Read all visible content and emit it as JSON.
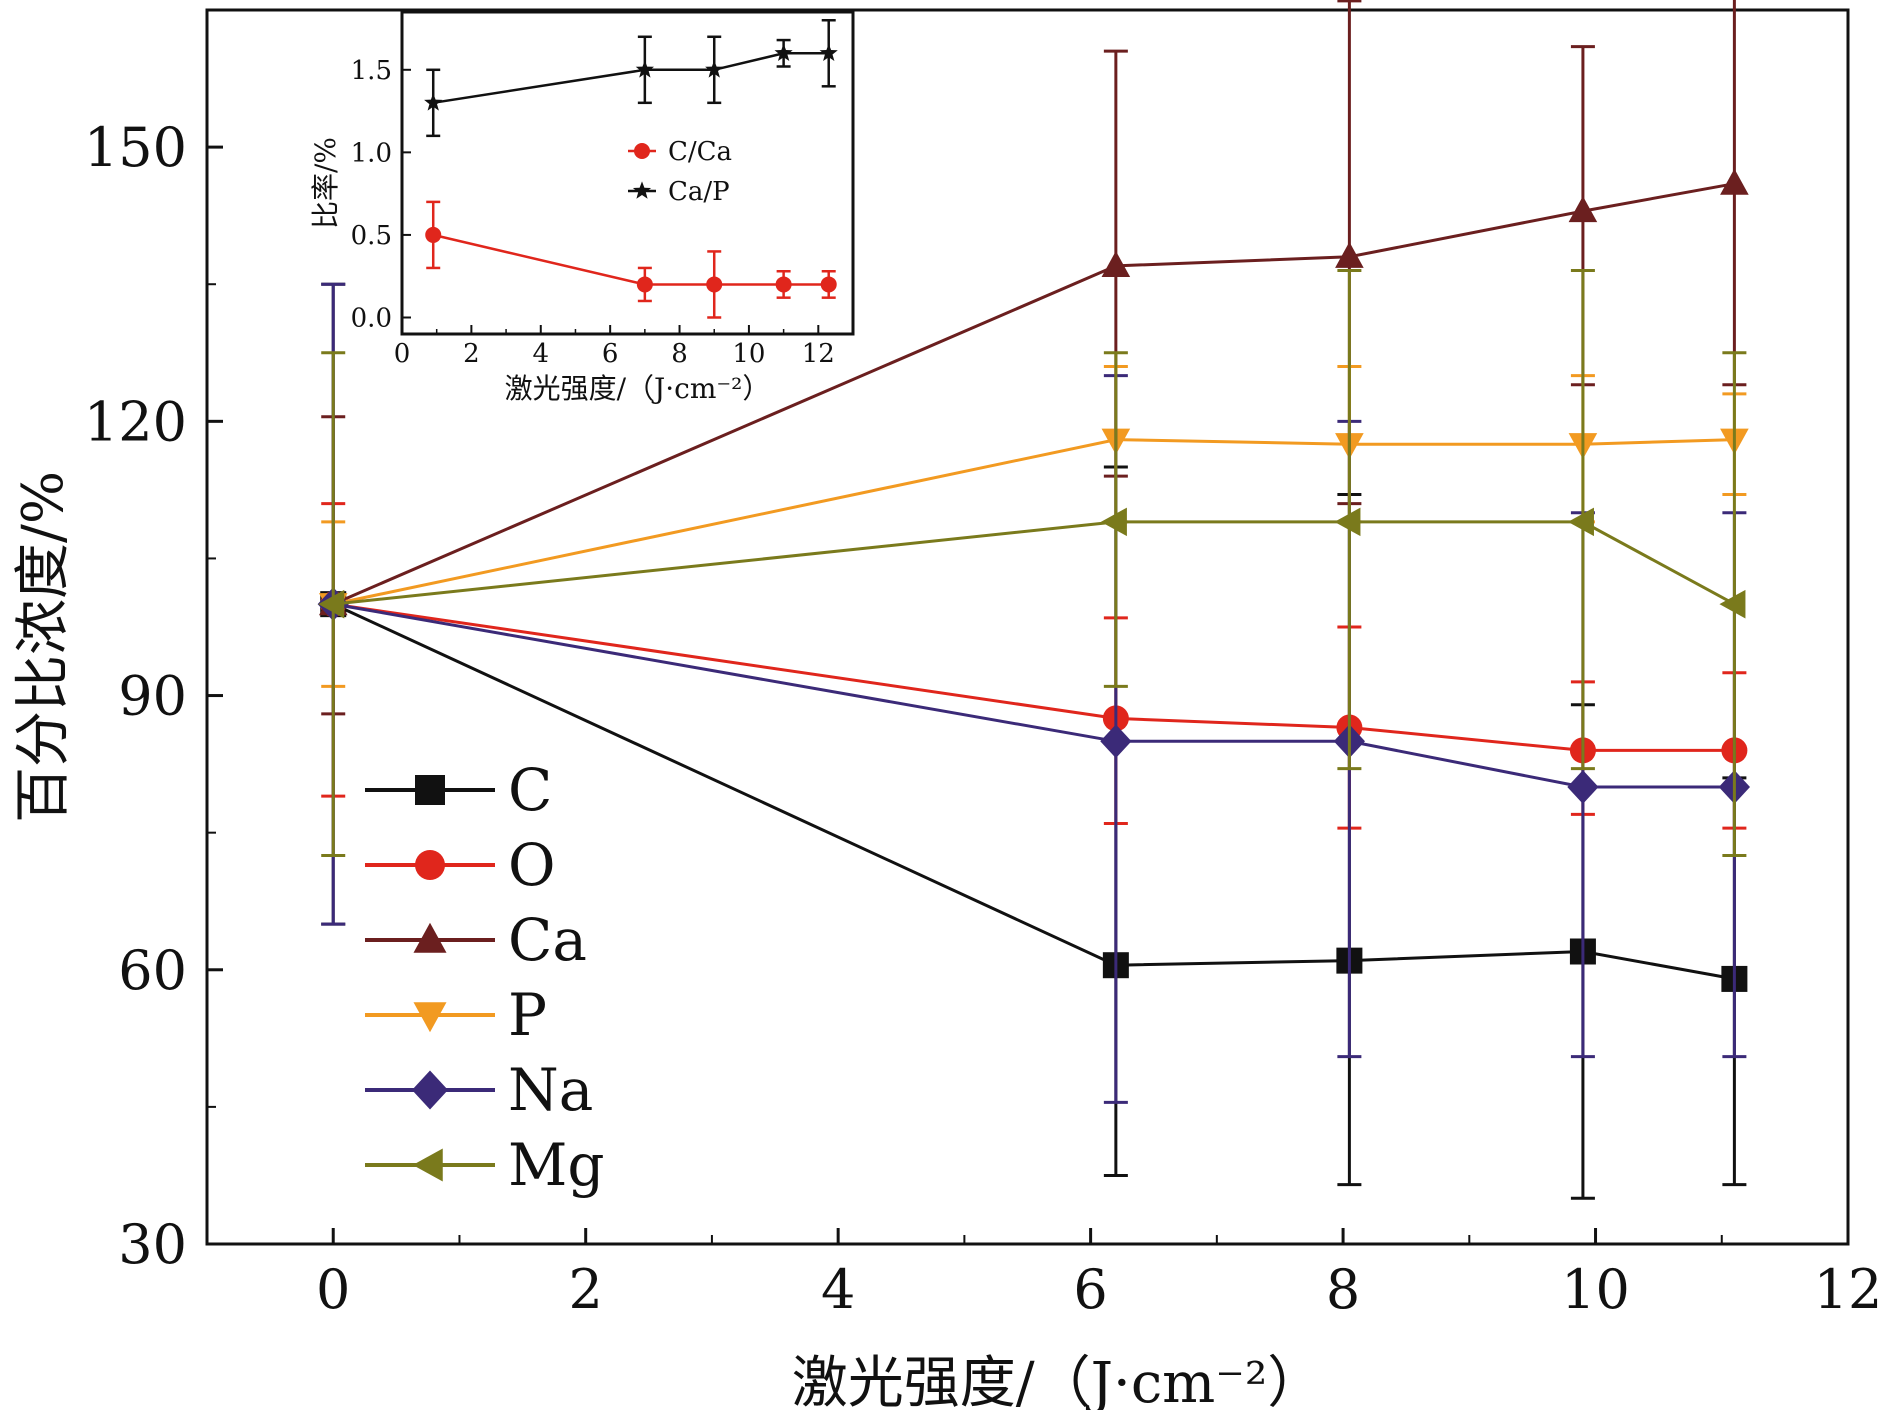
{
  "chart_data": [
    {
      "type": "line",
      "xlabel": "激光强度/（J·cm⁻²）",
      "ylabel": "百分比浓度/%",
      "xlim": [
        -1,
        12
      ],
      "ylim": [
        30,
        165
      ],
      "xticks": [
        0,
        2,
        4,
        6,
        8,
        10,
        12
      ],
      "yticks": [
        30,
        60,
        90,
        120,
        150
      ],
      "x": [
        0,
        6.2,
        8.05,
        9.9,
        11.1
      ],
      "legend_position": "bottom-left",
      "grid": false,
      "series": [
        {
          "name": "C",
          "color": "#111111",
          "marker": "square",
          "values": [
            100,
            60.5,
            61.0,
            62.0,
            59.0
          ],
          "err_low": [
            65,
            37.5,
            36.5,
            35.0,
            36.5
          ],
          "err_high": [
            135,
            115,
            112,
            89,
            81
          ]
        },
        {
          "name": "O",
          "color": "#e0261c",
          "marker": "circle",
          "values": [
            100,
            87.5,
            86.5,
            84.0,
            84.0
          ],
          "err_low": [
            79,
            76,
            75.5,
            77,
            75.5
          ],
          "err_high": [
            111,
            98.5,
            97.5,
            91.5,
            92.5
          ]
        },
        {
          "name": "Ca",
          "color": "#6b1f1f",
          "marker": "triangle-up",
          "values": [
            100,
            137,
            138,
            143,
            146
          ],
          "err_low": [
            88,
            114,
            111,
            124,
            124
          ],
          "err_high": [
            120.5,
            160.5,
            166,
            161,
            168
          ]
        },
        {
          "name": "P",
          "color": "#f29a21",
          "marker": "triangle-down",
          "values": [
            100,
            118,
            117.5,
            117.5,
            118
          ],
          "err_low": [
            91,
            109,
            109,
            109,
            112
          ],
          "err_high": [
            109,
            126,
            126,
            125,
            123
          ]
        },
        {
          "name": "Na",
          "color": "#3b2a78",
          "marker": "diamond",
          "values": [
            100,
            85,
            85,
            80,
            80
          ],
          "err_low": [
            65,
            45.5,
            50.5,
            50.5,
            50.5
          ],
          "err_high": [
            135,
            125,
            120,
            110,
            110
          ]
        },
        {
          "name": "Mg",
          "color": "#7a7a1c",
          "marker": "triangle-left",
          "values": [
            100,
            109,
            109,
            109,
            100
          ],
          "err_low": [
            72.5,
            91,
            82,
            82,
            72.5
          ],
          "err_high": [
            127.5,
            127.5,
            136.5,
            136.5,
            127.5
          ]
        }
      ]
    },
    {
      "type": "line",
      "xlabel": "激光强度/（J·cm⁻²）",
      "ylabel": "比率/%",
      "xlim": [
        0,
        13
      ],
      "ylim": [
        -0.1,
        1.85
      ],
      "xticks": [
        0,
        2,
        4,
        6,
        8,
        10,
        12
      ],
      "yticks": [
        0.0,
        0.5,
        1.0,
        1.5
      ],
      "ytick_labels": [
        "0.0",
        "0.5",
        "1.0",
        "1.5"
      ],
      "x": [
        0.9,
        7.0,
        9.0,
        11.0,
        12.3
      ],
      "legend_position": "center-right",
      "series": [
        {
          "name": "C/Ca",
          "color": "#e0261c",
          "marker": "circle",
          "values": [
            0.5,
            0.2,
            0.2,
            0.2,
            0.2
          ],
          "err": [
            0.2,
            0.1,
            0.2,
            0.08,
            0.08
          ]
        },
        {
          "name": "Ca/P",
          "color": "#111111",
          "marker": "star",
          "values": [
            1.3,
            1.5,
            1.5,
            1.6,
            1.6
          ],
          "err": [
            0.2,
            0.2,
            0.2,
            0.08,
            0.2
          ]
        }
      ]
    }
  ]
}
